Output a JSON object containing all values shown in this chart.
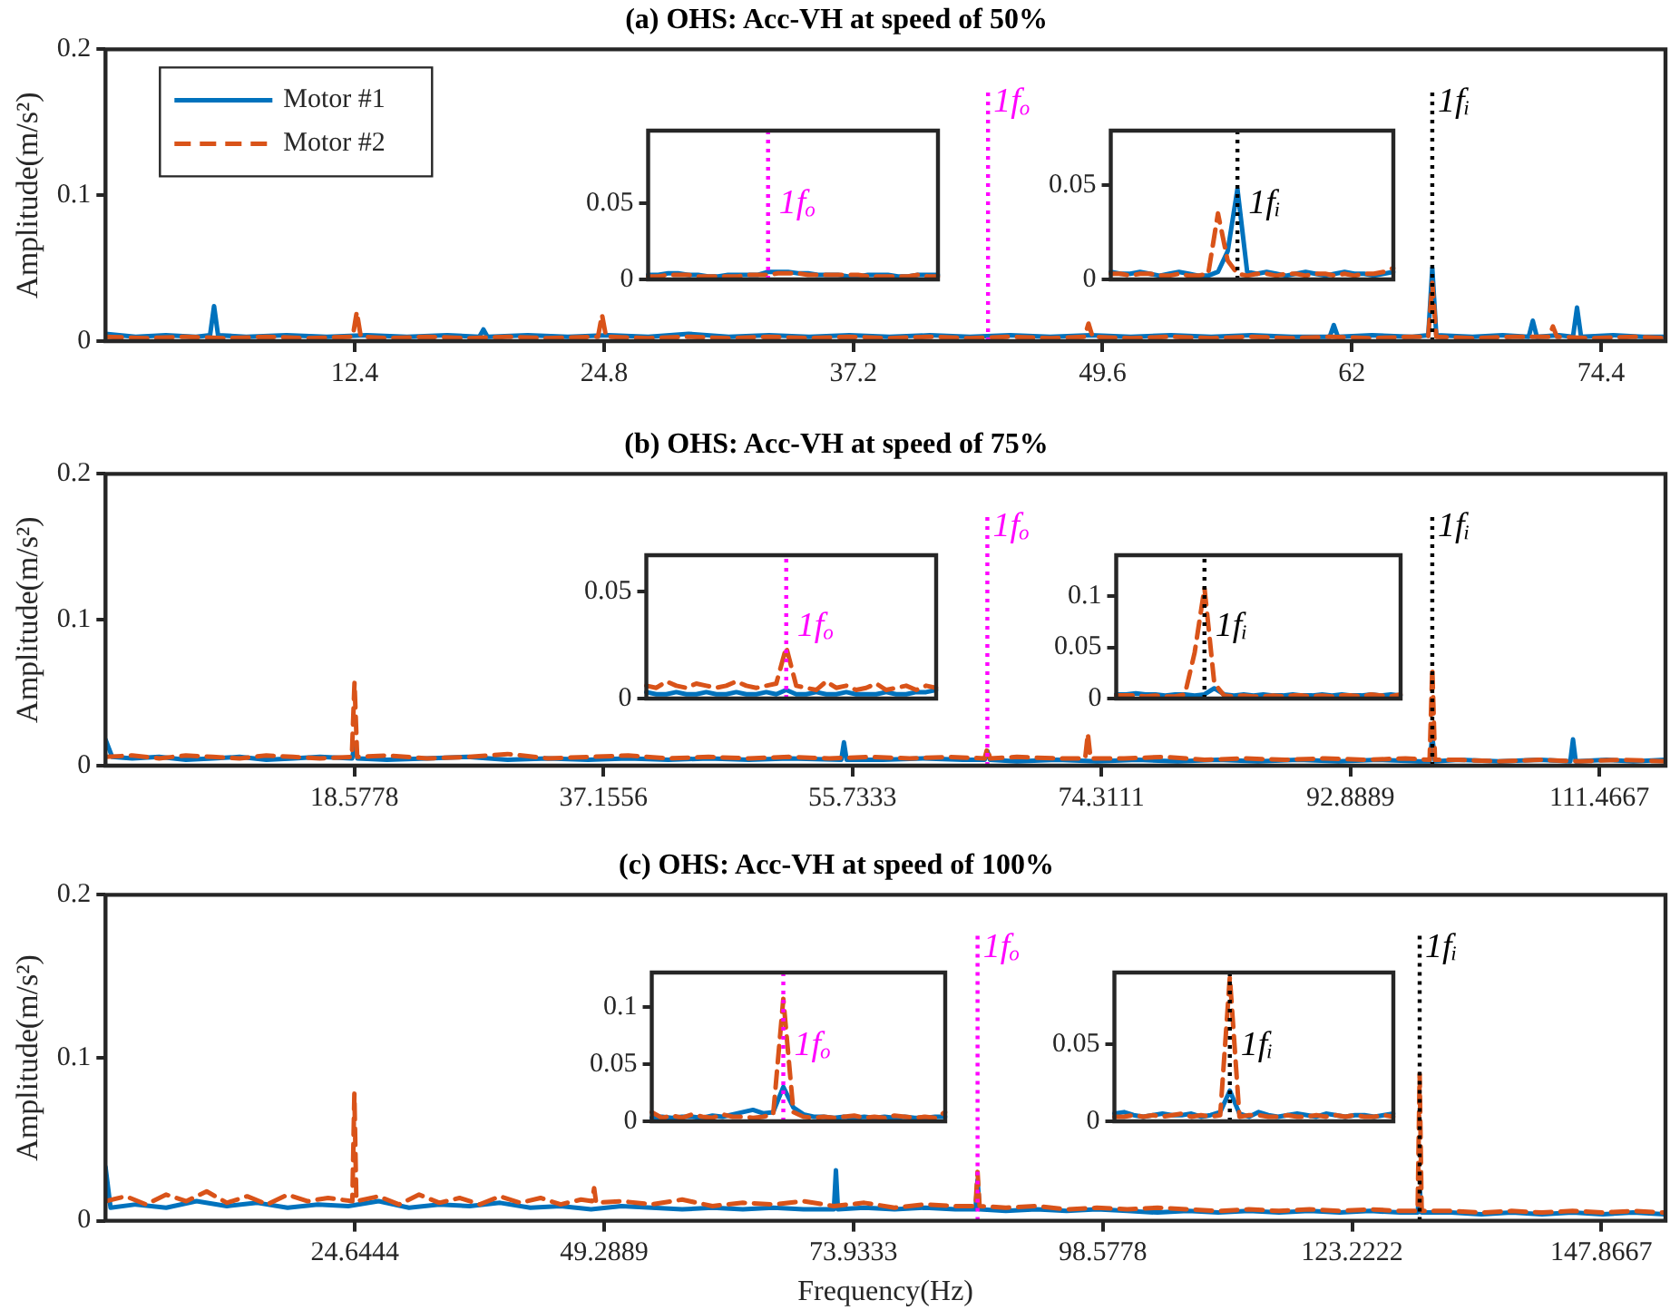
{
  "chart_data": [
    {
      "type": "line",
      "title": "(a) OHS: Acc-VH at speed of 50%",
      "ylabel": "Amplitude(m/s²)",
      "xlim": [
        0,
        77.6
      ],
      "xticks": [
        12.4,
        24.8,
        37.2,
        49.6,
        62,
        74.4
      ],
      "ylim": [
        0,
        0.2
      ],
      "yticks": [
        0,
        0.1,
        0.2
      ],
      "grid": false,
      "legend": "top left",
      "marker": "none",
      "ref_lines": [
        {
          "axis": "x",
          "value": 43.9,
          "label": "1fₒ",
          "color": "#ff00ff",
          "line_style": "dotted"
        },
        {
          "axis": "x",
          "value": 66,
          "label": "1fᵢ",
          "color": "#000000",
          "line_style": "dotted"
        }
      ],
      "series": [
        {
          "name": "Motor #1",
          "color": "#0072bd",
          "line_style": "solid",
          "x": [
            0,
            1.5,
            3,
            4.5,
            5.2,
            5.4,
            5.6,
            7,
            9,
            11,
            13,
            15,
            17,
            18.6,
            18.8,
            19,
            21,
            23,
            25,
            27,
            29,
            31,
            33,
            35,
            37,
            39,
            41,
            43,
            45,
            47,
            49,
            51,
            53,
            55,
            57,
            59,
            60.9,
            61.1,
            61.3,
            63,
            65,
            65.8,
            66,
            66.2,
            68,
            69.5,
            70.8,
            71,
            71.2,
            72.3,
            73,
            73.2,
            73.4,
            75,
            76.5,
            77.6
          ],
          "values": [
            0.005,
            0.003,
            0.004,
            0.003,
            0.004,
            0.024,
            0.004,
            0.003,
            0.004,
            0.003,
            0.004,
            0.003,
            0.004,
            0.003,
            0.008,
            0.003,
            0.004,
            0.003,
            0.004,
            0.003,
            0.005,
            0.003,
            0.004,
            0.003,
            0.004,
            0.003,
            0.004,
            0.003,
            0.004,
            0.003,
            0.004,
            0.003,
            0.004,
            0.003,
            0.004,
            0.003,
            0.003,
            0.011,
            0.003,
            0.004,
            0.003,
            0.004,
            0.05,
            0.004,
            0.003,
            0.004,
            0.003,
            0.014,
            0.003,
            0.004,
            0.003,
            0.023,
            0.003,
            0.004,
            0.003,
            0.003
          ]
        },
        {
          "name": "Motor #2",
          "color": "#d95319",
          "line_style": "dashed",
          "x": [
            0,
            2,
            4,
            6,
            8,
            10,
            12.3,
            12.5,
            12.7,
            14,
            16,
            18,
            20,
            22,
            24.5,
            24.7,
            24.9,
            27,
            29,
            31,
            33,
            35,
            37,
            39,
            41,
            43,
            45,
            47,
            48.7,
            48.9,
            49.1,
            51,
            53,
            55,
            57,
            59,
            61,
            63,
            65,
            65.8,
            66,
            66.2,
            68,
            70,
            71.8,
            72,
            72.2,
            74,
            76,
            77.6
          ],
          "values": [
            0.003,
            0.002,
            0.003,
            0.002,
            0.003,
            0.002,
            0.003,
            0.02,
            0.003,
            0.002,
            0.003,
            0.002,
            0.003,
            0.002,
            0.003,
            0.018,
            0.003,
            0.002,
            0.003,
            0.002,
            0.003,
            0.002,
            0.003,
            0.002,
            0.003,
            0.002,
            0.003,
            0.002,
            0.003,
            0.012,
            0.003,
            0.002,
            0.003,
            0.002,
            0.003,
            0.002,
            0.003,
            0.002,
            0.003,
            0.003,
            0.04,
            0.003,
            0.002,
            0.003,
            0.003,
            0.01,
            0.003,
            0.002,
            0.003,
            0.002
          ]
        }
      ]
    },
    {
      "type": "line",
      "categories": [
        null,
        null,
        null,
        null,
        null,
        null,
        null,
        null,
        null,
        null,
        null,
        null,
        null,
        null,
        null,
        null,
        null,
        null,
        null,
        null,
        null,
        null,
        null,
        null,
        null,
        null,
        null,
        null,
        null,
        null
      ],
      "ylim": [
        0,
        0.098
      ],
      "yticks": [
        0,
        0.05
      ],
      "tick_labels": "y",
      "grid": false,
      "marker": "none",
      "annotations": [
        "1fₒ"
      ],
      "series": [
        {
          "color": "#0072bd",
          "line_style": "solid",
          "values": [
            0.003,
            0.003,
            0.004,
            0.004,
            0.003,
            0.003,
            0.002,
            0.002,
            0.003,
            0.003,
            0.003,
            0.003,
            0.005,
            0.005,
            0.005,
            0.004,
            0.004,
            0.003,
            0.003,
            0.003,
            0.002,
            0.002,
            0.003,
            0.003,
            0.003,
            0.002,
            0.002,
            0.003,
            0.003,
            0.003
          ]
        },
        {
          "color": "#d95319",
          "line_style": "dashed",
          "values": [
            0.002,
            0.002,
            0.003,
            0.003,
            0.003,
            0.002,
            0.002,
            0.002,
            0.002,
            0.002,
            0.003,
            0.003,
            0.003,
            0.004,
            0.004,
            0.004,
            0.003,
            0.003,
            0.003,
            0.003,
            0.003,
            0.003,
            0.002,
            0.002,
            0.002,
            0.002,
            0.002,
            0.003,
            0.002,
            0.002
          ]
        }
      ]
    },
    {
      "type": "line",
      "categories": [
        null,
        null,
        null,
        null,
        null,
        null,
        null,
        null,
        null,
        null,
        null,
        null,
        null,
        null,
        null,
        null,
        null,
        null,
        null,
        null,
        null,
        null,
        null,
        null,
        null,
        null,
        null,
        null,
        null,
        null
      ],
      "ylim": [
        0,
        0.079
      ],
      "yticks": [
        0,
        0.05
      ],
      "tick_labels": "y",
      "grid": false,
      "marker": "none",
      "annotations": [
        "1fᵢ"
      ],
      "series": [
        {
          "color": "#0072bd",
          "line_style": "solid",
          "values": [
            0.004,
            0.003,
            0.003,
            0.004,
            0.003,
            0.002,
            0.003,
            0.004,
            0.003,
            0.002,
            0.002,
            0.004,
            0.015,
            0.048,
            0.004,
            0.003,
            0.004,
            0.003,
            0.002,
            0.003,
            0.004,
            0.003,
            0.002,
            0.003,
            0.004,
            0.003,
            0.003,
            0.002,
            0.003,
            0.004
          ]
        },
        {
          "color": "#d95319",
          "line_style": "dashed",
          "values": [
            0.003,
            0.003,
            0.002,
            0.003,
            0.003,
            0.002,
            0.002,
            0.003,
            0.002,
            0.002,
            0.003,
            0.035,
            0.01,
            0.003,
            0.002,
            0.003,
            0.003,
            0.002,
            0.003,
            0.003,
            0.002,
            0.003,
            0.003,
            0.002,
            0.003,
            0.002,
            0.003,
            0.003,
            0.004,
            0.006
          ]
        }
      ]
    },
    {
      "type": "line",
      "title": "(b) OHS: Acc-VH at speed of 75%",
      "ylabel": "Amplitude(m/s²)",
      "xlim": [
        0,
        116.4
      ],
      "xticks": [
        18.5778,
        37.1556,
        55.7333,
        74.3111,
        92.8889,
        111.4667
      ],
      "ylim": [
        0,
        0.2
      ],
      "yticks": [
        0,
        0.1,
        0.2
      ],
      "grid": false,
      "marker": "none",
      "ref_lines": [
        {
          "axis": "x",
          "value": 65.8,
          "label": "1fₒ",
          "color": "#ff00ff",
          "line_style": "dotted"
        },
        {
          "axis": "x",
          "value": 99,
          "label": "1fᵢ",
          "color": "#000000",
          "line_style": "dotted"
        }
      ],
      "series": [
        {
          "color": "#0072bd",
          "line_style": "solid",
          "x": [
            0,
            0.5,
            2,
            4,
            6,
            8,
            10,
            12,
            14,
            16,
            18.4,
            18.6,
            18.8,
            21,
            24,
            27,
            30,
            33,
            36,
            39,
            42,
            45,
            48,
            51,
            54.9,
            55.1,
            55.3,
            58,
            61,
            64,
            65.6,
            65.8,
            66,
            68,
            71,
            74,
            77,
            80,
            83,
            86,
            89,
            92,
            95,
            98,
            98.8,
            99,
            99.2,
            101,
            104,
            107,
            109.3,
            109.5,
            109.7,
            112,
            114,
            116.4
          ],
          "values": [
            0.018,
            0.006,
            0.005,
            0.006,
            0.004,
            0.005,
            0.006,
            0.004,
            0.005,
            0.006,
            0.005,
            0.015,
            0.005,
            0.004,
            0.005,
            0.006,
            0.004,
            0.005,
            0.004,
            0.005,
            0.004,
            0.005,
            0.004,
            0.005,
            0.004,
            0.016,
            0.004,
            0.004,
            0.005,
            0.004,
            0.004,
            0.01,
            0.004,
            0.003,
            0.004,
            0.003,
            0.004,
            0.003,
            0.004,
            0.003,
            0.004,
            0.003,
            0.004,
            0.003,
            0.003,
            0.02,
            0.003,
            0.004,
            0.003,
            0.004,
            0.003,
            0.018,
            0.003,
            0.004,
            0.003,
            0.004
          ]
        },
        {
          "color": "#d95319",
          "line_style": "dashed",
          "x": [
            0,
            2,
            4,
            6,
            8,
            10,
            12,
            14,
            16,
            18.38,
            18.58,
            18.78,
            21,
            24,
            27,
            30,
            33,
            36,
            39,
            42,
            45,
            48,
            51,
            54,
            57,
            60,
            63,
            65.6,
            65.8,
            66,
            68,
            71,
            73.1,
            73.3,
            73.5,
            76,
            79,
            82,
            85,
            88,
            91,
            94,
            97,
            98.8,
            99,
            99.2,
            101,
            104,
            107,
            110,
            113,
            116.4
          ],
          "values": [
            0.006,
            0.007,
            0.005,
            0.007,
            0.006,
            0.005,
            0.007,
            0.006,
            0.005,
            0.006,
            0.057,
            0.006,
            0.007,
            0.005,
            0.006,
            0.008,
            0.005,
            0.006,
            0.007,
            0.005,
            0.006,
            0.005,
            0.006,
            0.005,
            0.006,
            0.005,
            0.006,
            0.005,
            0.012,
            0.005,
            0.006,
            0.005,
            0.005,
            0.022,
            0.005,
            0.005,
            0.006,
            0.004,
            0.005,
            0.004,
            0.005,
            0.004,
            0.005,
            0.004,
            0.067,
            0.004,
            0.004,
            0.003,
            0.004,
            0.003,
            0.004,
            0.003
          ]
        }
      ]
    },
    {
      "type": "line",
      "categories": [
        null,
        null,
        null,
        null,
        null,
        null,
        null,
        null,
        null,
        null,
        null,
        null,
        null,
        null,
        null,
        null,
        null,
        null,
        null,
        null,
        null,
        null,
        null,
        null,
        null,
        null,
        null,
        null,
        null,
        null
      ],
      "ylim": [
        0,
        0.067
      ],
      "yticks": [
        0,
        0.05
      ],
      "tick_labels": "y",
      "grid": false,
      "marker": "none",
      "annotations": [
        "1fₒ"
      ],
      "series": [
        {
          "color": "#0072bd",
          "line_style": "solid",
          "values": [
            0.003,
            0.002,
            0.002,
            0.003,
            0.002,
            0.002,
            0.003,
            0.002,
            0.002,
            0.003,
            0.002,
            0.002,
            0.003,
            0.002,
            0.004,
            0.002,
            0.002,
            0.003,
            0.002,
            0.002,
            0.003,
            0.002,
            0.002,
            0.002,
            0.003,
            0.002,
            0.002,
            0.003,
            0.003,
            0.004
          ]
        },
        {
          "color": "#d95319",
          "line_style": "dashed",
          "values": [
            0.006,
            0.005,
            0.008,
            0.006,
            0.005,
            0.007,
            0.006,
            0.005,
            0.006,
            0.008,
            0.006,
            0.005,
            0.006,
            0.007,
            0.024,
            0.006,
            0.005,
            0.004,
            0.008,
            0.005,
            0.006,
            0.004,
            0.005,
            0.007,
            0.004,
            0.005,
            0.006,
            0.004,
            0.006,
            0.005
          ]
        }
      ]
    },
    {
      "type": "line",
      "categories": [
        null,
        null,
        null,
        null,
        null,
        null,
        null,
        null,
        null,
        null,
        null,
        null,
        null,
        null,
        null,
        null,
        null,
        null,
        null,
        null,
        null,
        null,
        null,
        null,
        null,
        null,
        null,
        null,
        null,
        null
      ],
      "ylim": [
        0,
        0.14
      ],
      "yticks": [
        0,
        0.05,
        0.1
      ],
      "tick_labels": "y",
      "grid": false,
      "marker": "none",
      "annotations": [
        "1fᵢ"
      ],
      "series": [
        {
          "color": "#0072bd",
          "line_style": "solid",
          "values": [
            0.004,
            0.004,
            0.005,
            0.004,
            0.004,
            0.003,
            0.004,
            0.004,
            0.003,
            0.004,
            0.01,
            0.004,
            0.003,
            0.004,
            0.003,
            0.004,
            0.003,
            0.003,
            0.004,
            0.003,
            0.003,
            0.004,
            0.003,
            0.004,
            0.003,
            0.003,
            0.004,
            0.003,
            0.004,
            0.003
          ]
        },
        {
          "color": "#d95319",
          "line_style": "dashed",
          "values": [
            0.003,
            0.003,
            0.003,
            0.002,
            0.003,
            0.002,
            0.002,
            0.004,
            0.045,
            0.108,
            0.015,
            0.003,
            0.002,
            0.003,
            0.002,
            0.002,
            0.003,
            0.002,
            0.003,
            0.003,
            0.002,
            0.003,
            0.002,
            0.003,
            0.003,
            0.002,
            0.004,
            0.003,
            0.002,
            0.004
          ]
        }
      ]
    },
    {
      "type": "line",
      "title": "(c) OHS: Acc-VH at speed of 100%",
      "xlabel": "Frequency(Hz)",
      "ylabel": "Amplitude(m/s²)",
      "xlim": [
        0,
        154.2
      ],
      "xticks": [
        24.6444,
        49.2889,
        73.9333,
        98.5778,
        123.2222,
        147.8667
      ],
      "ylim": [
        0,
        0.2
      ],
      "yticks": [
        0,
        0.1,
        0.2
      ],
      "grid": false,
      "marker": "none",
      "ref_lines": [
        {
          "axis": "x",
          "value": 86.2,
          "label": "1fₒ",
          "color": "#ff00ff",
          "line_style": "dotted"
        },
        {
          "axis": "x",
          "value": 129.9,
          "label": "1fᵢ",
          "color": "#000000",
          "line_style": "dotted"
        }
      ],
      "series": [
        {
          "color": "#0072bd",
          "line_style": "solid",
          "x": [
            0,
            0.5,
            3,
            6,
            9,
            12,
            15,
            18,
            21,
            24,
            27,
            30,
            33,
            36,
            39,
            42,
            45,
            48,
            51,
            54,
            57,
            60,
            63,
            66,
            69,
            72,
            72.2,
            72.4,
            75,
            78,
            81,
            84,
            86,
            86.2,
            86.4,
            89,
            92,
            95,
            98,
            101,
            104,
            107,
            110,
            113,
            116,
            119,
            122,
            125,
            128,
            129.7,
            129.9,
            130.1,
            133,
            136,
            139,
            142,
            145,
            148,
            151,
            154.2
          ],
          "values": [
            0.033,
            0.008,
            0.01,
            0.008,
            0.012,
            0.009,
            0.011,
            0.008,
            0.01,
            0.009,
            0.012,
            0.008,
            0.01,
            0.009,
            0.011,
            0.008,
            0.009,
            0.007,
            0.009,
            0.008,
            0.007,
            0.008,
            0.007,
            0.008,
            0.007,
            0.007,
            0.031,
            0.007,
            0.008,
            0.007,
            0.008,
            0.007,
            0.007,
            0.025,
            0.007,
            0.006,
            0.007,
            0.006,
            0.007,
            0.006,
            0.005,
            0.006,
            0.005,
            0.006,
            0.005,
            0.006,
            0.005,
            0.006,
            0.005,
            0.005,
            0.02,
            0.005,
            0.005,
            0.004,
            0.005,
            0.004,
            0.005,
            0.004,
            0.005,
            0.004
          ]
        },
        {
          "color": "#d95319",
          "line_style": "dashed",
          "x": [
            0,
            2,
            4,
            6,
            8,
            10,
            12,
            14,
            16,
            18,
            20,
            22,
            24.4,
            24.6,
            24.8,
            27,
            29,
            31,
            33,
            35,
            37,
            39,
            41,
            43,
            45,
            47,
            48.1,
            48.3,
            48.5,
            51,
            54,
            57,
            60,
            63,
            66,
            69,
            72,
            75,
            78,
            81,
            84,
            86,
            86.2,
            86.4,
            89,
            92,
            95,
            98,
            101,
            104,
            107,
            110,
            113,
            116,
            119,
            122,
            125,
            128,
            129.7,
            129.9,
            130.1,
            133,
            136,
            139,
            142,
            145,
            148,
            151,
            154.2
          ],
          "values": [
            0.012,
            0.015,
            0.01,
            0.016,
            0.012,
            0.018,
            0.011,
            0.015,
            0.01,
            0.016,
            0.012,
            0.014,
            0.012,
            0.078,
            0.012,
            0.015,
            0.01,
            0.016,
            0.011,
            0.014,
            0.01,
            0.015,
            0.011,
            0.014,
            0.01,
            0.013,
            0.012,
            0.02,
            0.011,
            0.012,
            0.01,
            0.013,
            0.009,
            0.011,
            0.01,
            0.012,
            0.009,
            0.011,
            0.008,
            0.01,
            0.009,
            0.009,
            0.03,
            0.009,
            0.008,
            0.009,
            0.007,
            0.008,
            0.007,
            0.008,
            0.007,
            0.006,
            0.007,
            0.006,
            0.007,
            0.006,
            0.007,
            0.006,
            0.006,
            0.09,
            0.006,
            0.006,
            0.005,
            0.006,
            0.005,
            0.006,
            0.005,
            0.006,
            0.005
          ]
        }
      ]
    },
    {
      "type": "line",
      "categories": [
        null,
        null,
        null,
        null,
        null,
        null,
        null,
        null,
        null,
        null,
        null,
        null,
        null,
        null,
        null,
        null,
        null,
        null,
        null,
        null,
        null,
        null,
        null,
        null,
        null,
        null,
        null,
        null,
        null,
        null
      ],
      "ylim": [
        0,
        0.13
      ],
      "yticks": [
        0,
        0.05,
        0.1
      ],
      "tick_labels": "y",
      "grid": false,
      "marker": "none",
      "annotations": [
        "1fₒ"
      ],
      "series": [
        {
          "color": "#0072bd",
          "line_style": "solid",
          "values": [
            0.003,
            0.004,
            0.003,
            0.004,
            0.004,
            0.003,
            0.005,
            0.004,
            0.006,
            0.008,
            0.01,
            0.007,
            0.008,
            0.03,
            0.012,
            0.006,
            0.004,
            0.004,
            0.003,
            0.004,
            0.003,
            0.004,
            0.003,
            0.004,
            0.003,
            0.004,
            0.003,
            0.003,
            0.004,
            0.004
          ]
        },
        {
          "color": "#d95319",
          "line_style": "dashed",
          "values": [
            0.008,
            0.003,
            0.005,
            0.003,
            0.006,
            0.004,
            0.003,
            0.006,
            0.004,
            0.004,
            0.003,
            0.004,
            0.006,
            0.107,
            0.008,
            0.004,
            0.003,
            0.004,
            0.003,
            0.004,
            0.005,
            0.003,
            0.004,
            0.003,
            0.005,
            0.004,
            0.003,
            0.004,
            0.003,
            0.008
          ]
        }
      ]
    },
    {
      "type": "line",
      "categories": [
        null,
        null,
        null,
        null,
        null,
        null,
        null,
        null,
        null,
        null,
        null,
        null,
        null,
        null,
        null,
        null,
        null,
        null,
        null,
        null,
        null,
        null,
        null,
        null,
        null,
        null,
        null,
        null,
        null,
        null
      ],
      "ylim": [
        0,
        0.097
      ],
      "yticks": [
        0,
        0.05
      ],
      "tick_labels": "y",
      "grid": false,
      "marker": "none",
      "annotations": [
        "1fᵢ"
      ],
      "series": [
        {
          "color": "#0072bd",
          "line_style": "solid",
          "values": [
            0.005,
            0.006,
            0.004,
            0.003,
            0.004,
            0.005,
            0.004,
            0.004,
            0.005,
            0.003,
            0.004,
            0.006,
            0.02,
            0.005,
            0.003,
            0.006,
            0.004,
            0.003,
            0.004,
            0.005,
            0.004,
            0.003,
            0.005,
            0.004,
            0.003,
            0.004,
            0.004,
            0.003,
            0.004,
            0.005
          ]
        },
        {
          "color": "#d95319",
          "line_style": "dashed",
          "values": [
            0.003,
            0.003,
            0.004,
            0.003,
            0.004,
            0.003,
            0.004,
            0.005,
            0.003,
            0.004,
            0.003,
            0.004,
            0.094,
            0.003,
            0.004,
            0.004,
            0.003,
            0.003,
            0.004,
            0.003,
            0.003,
            0.004,
            0.003,
            0.004,
            0.003,
            0.004,
            0.003,
            0.003,
            0.004,
            0.003
          ]
        }
      ]
    }
  ]
}
